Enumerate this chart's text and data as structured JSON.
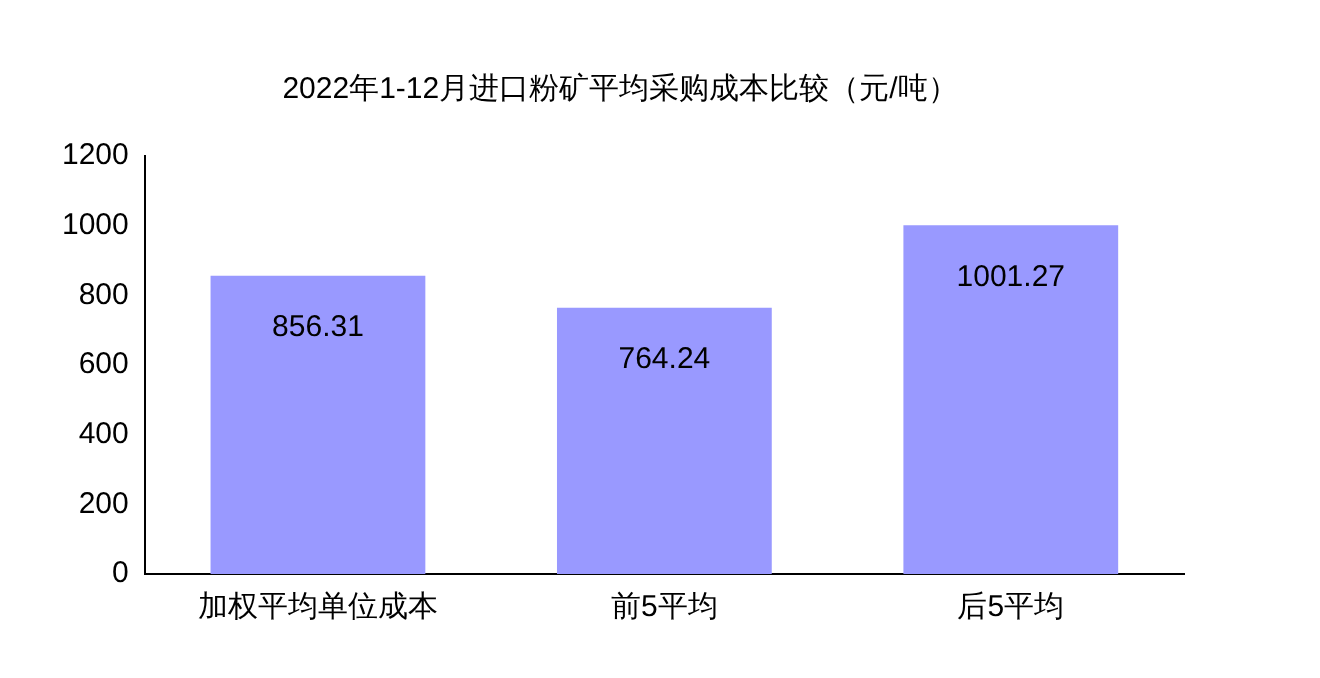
{
  "chart_data": {
    "type": "bar",
    "title": "2022年1-12月进口粉矿平均采购成本比较（元/吨）",
    "categories": [
      "加权平均单位成本",
      "前5平均",
      "后5平均"
    ],
    "values": [
      856.31,
      764.24,
      1001.27
    ],
    "color": "#9999ff",
    "ylim": [
      0,
      1200
    ],
    "yticks": [
      0,
      200,
      400,
      600,
      800,
      1000,
      1200
    ],
    "grid": false,
    "legend": false,
    "data_labels": true
  }
}
